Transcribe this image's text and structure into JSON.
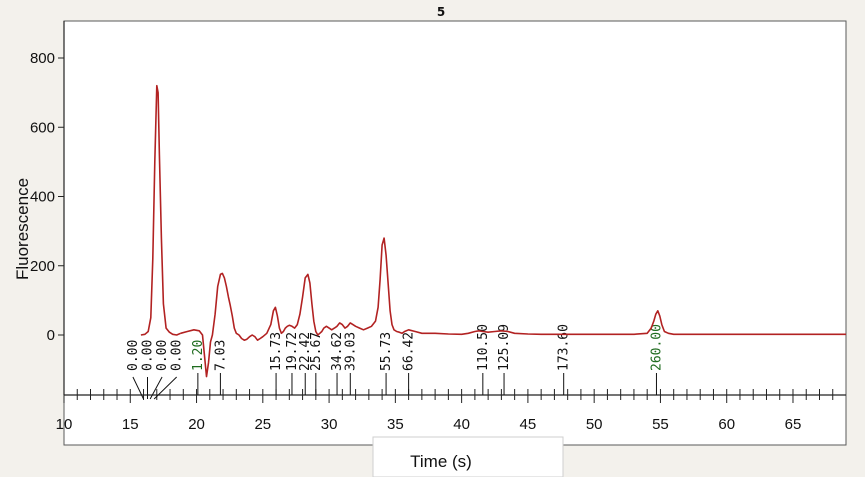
{
  "chart_data": {
    "type": "line",
    "title": "5",
    "xlabel": "Time (s)",
    "ylabel": "Fluorescence",
    "xlim": [
      10,
      69
    ],
    "ylim": [
      -140,
      830
    ],
    "x_ticks": [
      10,
      15,
      20,
      25,
      30,
      35,
      40,
      45,
      50,
      55,
      60,
      65
    ],
    "y_ticks": [
      0,
      200,
      400,
      600,
      800
    ],
    "grid": false,
    "line_color": "#b22222",
    "series": [
      {
        "x": [
          18.8,
          19.3,
          19.8,
          20.2,
          20.45,
          20.6,
          20.75,
          20.9,
          21.05,
          21.2,
          21.4,
          21.6,
          21.8,
          21.95,
          22.1,
          22.25,
          22.4,
          22.55,
          22.7,
          22.85,
          23.0,
          23.2,
          23.4,
          23.6,
          23.8,
          24.0,
          24.2,
          24.4,
          24.6,
          24.8,
          25.0,
          25.3,
          25.6,
          25.8,
          25.95,
          26.1,
          26.25,
          26.4,
          26.55,
          26.7,
          26.85,
          27.0,
          27.2,
          27.4,
          27.6,
          27.8,
          28.0,
          28.2,
          28.4,
          28.55,
          28.7,
          28.85,
          29.0,
          29.15,
          29.3,
          29.45,
          29.6,
          29.8,
          30.0,
          30.2,
          30.4,
          30.6,
          30.8,
          31.0,
          31.2,
          31.4,
          31.6,
          31.8,
          32.0,
          32.3,
          32.6,
          32.9,
          33.2,
          33.5,
          33.7,
          33.85,
          34.0,
          34.15,
          34.3,
          34.45,
          34.6,
          34.75,
          34.9,
          35.1,
          35.3,
          35.5,
          35.7,
          36.0,
          36.5,
          37.0,
          37.5,
          38.0,
          39.0,
          40.0,
          40.5,
          41.0,
          41.3,
          41.6,
          42.0,
          42.5,
          43.0,
          43.5,
          44.0,
          45.0,
          46.0,
          47.0,
          48.0,
          49.0,
          50.0,
          51.0,
          52.0,
          53.0,
          54.0,
          54.3,
          54.5,
          54.65,
          54.8,
          54.95,
          55.1,
          55.3,
          55.6,
          56.0,
          57.0,
          58.0,
          60.0,
          62.0,
          64.0,
          66.0,
          68.0,
          69.0
        ],
        "y": [
          5,
          10,
          15,
          12,
          0,
          -60,
          -120,
          -80,
          -20,
          0,
          60,
          140,
          175,
          178,
          165,
          140,
          110,
          85,
          55,
          20,
          5,
          0,
          -10,
          -15,
          -12,
          -5,
          0,
          -5,
          -15,
          -10,
          -5,
          5,
          30,
          70,
          80,
          55,
          20,
          5,
          10,
          20,
          25,
          28,
          25,
          20,
          30,
          60,
          110,
          165,
          175,
          150,
          90,
          40,
          10,
          0,
          5,
          10,
          20,
          25,
          20,
          15,
          20,
          25,
          35,
          30,
          20,
          25,
          35,
          30,
          25,
          20,
          15,
          20,
          25,
          40,
          80,
          160,
          260,
          280,
          230,
          150,
          70,
          30,
          15,
          10,
          8,
          5,
          10,
          15,
          10,
          5,
          5,
          5,
          3,
          2,
          5,
          10,
          12,
          10,
          8,
          10,
          12,
          10,
          5,
          3,
          2,
          2,
          2,
          2,
          2,
          2,
          2,
          2,
          5,
          20,
          40,
          60,
          70,
          55,
          30,
          10,
          5,
          2,
          2,
          2,
          2,
          2,
          2,
          2,
          2,
          2
        ]
      },
      {
        "x": [
          15.8,
          16.1,
          16.35,
          16.55,
          16.7,
          16.85,
          17.0,
          17.1,
          17.2,
          17.35,
          17.5,
          17.7,
          17.95,
          18.2,
          18.5,
          18.8
        ],
        "y": [
          0,
          2,
          10,
          50,
          220,
          500,
          720,
          700,
          520,
          280,
          90,
          20,
          8,
          2,
          0,
          5
        ]
      }
    ],
    "annotations": [
      {
        "text": "0.00",
        "x": 15.2,
        "color": "#111111"
      },
      {
        "text": "0.00",
        "x": 16.3,
        "color": "#111111"
      },
      {
        "text": "0.00",
        "x": 17.4,
        "color": "#111111"
      },
      {
        "text": "0.00",
        "x": 18.5,
        "color": "#111111"
      },
      {
        "text": "1.20",
        "x": 20.1,
        "color": "#1e6b1e"
      },
      {
        "text": "7.03",
        "x": 21.8,
        "color": "#111111"
      },
      {
        "text": "15.73",
        "x": 26.0,
        "color": "#111111"
      },
      {
        "text": "19.72",
        "x": 27.2,
        "color": "#111111"
      },
      {
        "text": "22.42",
        "x": 28.2,
        "color": "#111111"
      },
      {
        "text": "25.67",
        "x": 29.0,
        "color": "#111111"
      },
      {
        "text": "34.62",
        "x": 30.6,
        "color": "#111111"
      },
      {
        "text": "39.03",
        "x": 31.6,
        "color": "#111111"
      },
      {
        "text": "55.73",
        "x": 34.3,
        "color": "#111111"
      },
      {
        "text": "66.42",
        "x": 36.0,
        "color": "#111111"
      },
      {
        "text": "110.50",
        "x": 41.6,
        "color": "#111111"
      },
      {
        "text": "125.09",
        "x": 43.2,
        "color": "#111111"
      },
      {
        "text": "173.60",
        "x": 47.7,
        "color": "#111111"
      },
      {
        "text": "260.00",
        "x": 54.7,
        "color": "#1e6b1e"
      }
    ]
  }
}
